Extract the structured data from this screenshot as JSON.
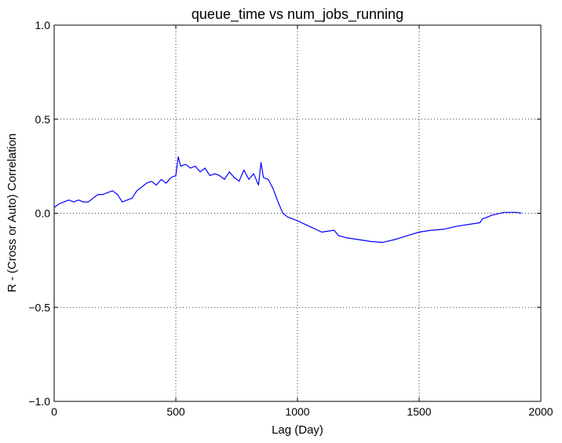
{
  "chart_data": {
    "type": "line",
    "title": "queue_time vs num_jobs_running",
    "xlabel": "Lag (Day)",
    "ylabel": "R - (Cross or Auto) Correlation",
    "xlim": [
      0,
      2000
    ],
    "ylim": [
      -1.0,
      1.0
    ],
    "xticks": [
      0,
      500,
      1000,
      1500,
      2000
    ],
    "xtick_labels": [
      "0",
      "500",
      "1000",
      "1500",
      "2000"
    ],
    "yticks": [
      -1.0,
      -0.5,
      0.0,
      0.5,
      1.0
    ],
    "ytick_labels": [
      "−1.0",
      "−0.5",
      "0.0",
      "0.5",
      "1.0"
    ],
    "grid": true,
    "series": [
      {
        "color": "#0000ff",
        "x": [
          0,
          20,
          40,
          60,
          80,
          100,
          120,
          140,
          160,
          180,
          200,
          220,
          240,
          260,
          280,
          300,
          320,
          340,
          360,
          380,
          400,
          420,
          440,
          460,
          480,
          500,
          510,
          520,
          540,
          560,
          580,
          600,
          620,
          640,
          660,
          680,
          700,
          720,
          740,
          760,
          780,
          800,
          820,
          840,
          850,
          860,
          880,
          900,
          920,
          940,
          960,
          980,
          1000,
          1050,
          1100,
          1150,
          1170,
          1200,
          1250,
          1300,
          1350,
          1400,
          1450,
          1500,
          1550,
          1600,
          1650,
          1700,
          1750,
          1760,
          1800,
          1850,
          1900,
          1920
        ],
        "y": [
          0.03,
          0.05,
          0.06,
          0.07,
          0.06,
          0.07,
          0.06,
          0.06,
          0.08,
          0.1,
          0.1,
          0.11,
          0.12,
          0.1,
          0.06,
          0.07,
          0.08,
          0.12,
          0.14,
          0.16,
          0.17,
          0.15,
          0.18,
          0.16,
          0.19,
          0.2,
          0.3,
          0.25,
          0.26,
          0.24,
          0.25,
          0.22,
          0.24,
          0.2,
          0.21,
          0.2,
          0.18,
          0.22,
          0.19,
          0.17,
          0.23,
          0.18,
          0.21,
          0.15,
          0.27,
          0.19,
          0.18,
          0.13,
          0.06,
          0.0,
          -0.02,
          -0.03,
          -0.04,
          -0.07,
          -0.1,
          -0.09,
          -0.12,
          -0.13,
          -0.14,
          -0.15,
          -0.155,
          -0.14,
          -0.12,
          -0.1,
          -0.09,
          -0.085,
          -0.07,
          -0.06,
          -0.05,
          -0.03,
          -0.01,
          0.005,
          0.005,
          0.0
        ]
      }
    ]
  }
}
